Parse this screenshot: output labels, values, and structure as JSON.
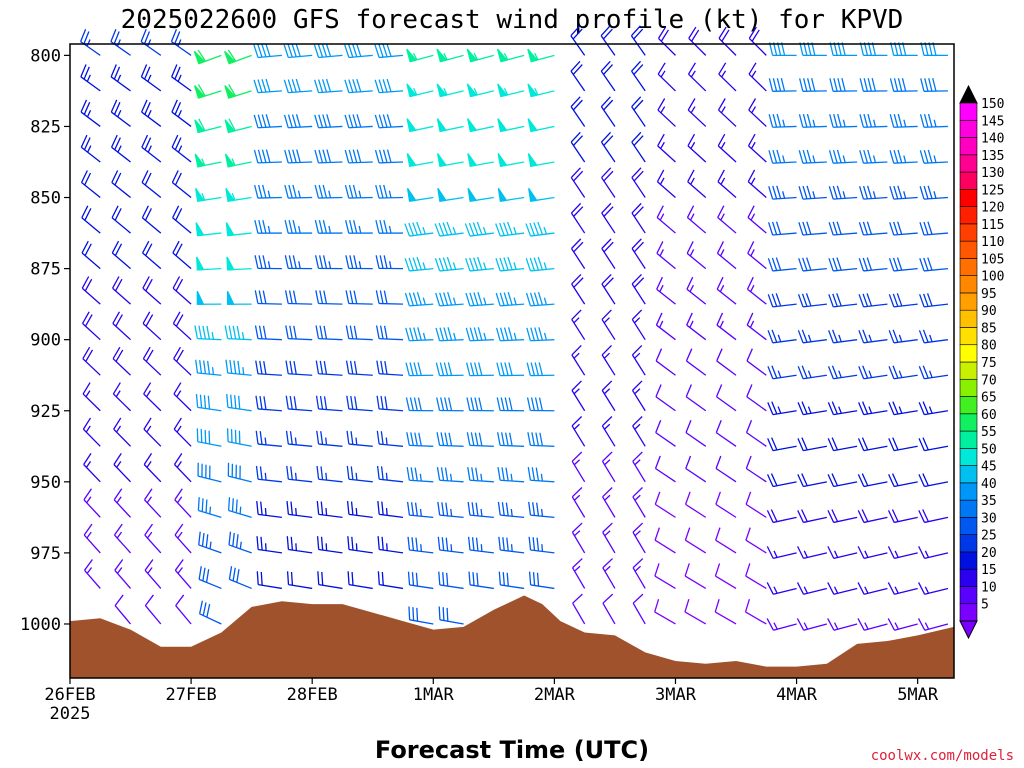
{
  "chart_data": {
    "type": "wind-barb-profile",
    "title": "2025022600 GFS forecast wind profile (kt) for KPVD",
    "xlabel": "Forecast Time (UTC)",
    "ylabel": "",
    "credit": "coolwx.com/models",
    "x_ticks": [
      {
        "label": "26FEB",
        "sub": "2025",
        "day": 0
      },
      {
        "label": "27FEB",
        "sub": "",
        "day": 1
      },
      {
        "label": "28FEB",
        "sub": "",
        "day": 2
      },
      {
        "label": "1MAR",
        "sub": "",
        "day": 3
      },
      {
        "label": "2MAR",
        "sub": "",
        "day": 4
      },
      {
        "label": "3MAR",
        "sub": "",
        "day": 5
      },
      {
        "label": "4MAR",
        "sub": "",
        "day": 6
      },
      {
        "label": "5MAR",
        "sub": "",
        "day": 7
      }
    ],
    "xlim_days": [
      0,
      7.3
    ],
    "y_ticks": [
      800,
      825,
      850,
      875,
      900,
      925,
      950,
      975,
      1000
    ],
    "ylim_hpa": [
      796,
      1019
    ],
    "pressure_levels_hpa": [
      800,
      812.5,
      825,
      837.5,
      850,
      862.5,
      875,
      887.5,
      900,
      912.5,
      925,
      937.5,
      950,
      962.5,
      975,
      987.5,
      1000
    ],
    "colorbar": {
      "levels": [
        5,
        10,
        15,
        20,
        25,
        30,
        35,
        40,
        45,
        50,
        55,
        60,
        65,
        70,
        75,
        80,
        85,
        90,
        95,
        100,
        105,
        110,
        115,
        120,
        125,
        130,
        135,
        140,
        145,
        150
      ],
      "colors": [
        "#7a00ff",
        "#5a00ff",
        "#2a00ee",
        "#0010e0",
        "#0038e8",
        "#0058f0",
        "#0078f4",
        "#0098f8",
        "#00c0f0",
        "#00e8d8",
        "#00f0a0",
        "#10f060",
        "#40f020",
        "#88f000",
        "#c8f000",
        "#ffff00",
        "#ffe000",
        "#ffc000",
        "#ffa000",
        "#ff8800",
        "#ff7000",
        "#ff5800",
        "#ff4000",
        "#ff2000",
        "#ff0000",
        "#ff0060",
        "#ff0090",
        "#ff00c0",
        "#ff00e0",
        "#ff00ff"
      ],
      "low_color": "#7a00ff",
      "high_color": "#000000"
    },
    "surface_pressure": {
      "color": "#a0522d",
      "days": [
        0,
        0.25,
        0.5,
        0.75,
        1.0,
        1.25,
        1.5,
        1.75,
        2.0,
        2.25,
        2.5,
        2.75,
        3.0,
        3.25,
        3.5,
        3.75,
        3.9,
        4.05,
        4.25,
        4.5,
        4.75,
        5.0,
        5.25,
        5.5,
        5.75,
        6.0,
        6.25,
        6.5,
        6.75,
        7.0,
        7.3
      ],
      "hpa": [
        999,
        998,
        1002,
        1008,
        1008,
        1003,
        994,
        992,
        993,
        993,
        996,
        999,
        1002,
        1001,
        995,
        990,
        993,
        999,
        1003,
        1004,
        1010,
        1013,
        1014,
        1013,
        1015,
        1015,
        1014,
        1007,
        1006,
        1004,
        1001
      ]
    },
    "wind_barbs": {
      "time_step_hours": 6,
      "segments": [
        {
          "day_start": 0.0,
          "day_end": 1.05,
          "speed_top": 25,
          "speed_bottom": 12,
          "dir_top": 305,
          "dir_bottom": 320
        },
        {
          "day_start": 1.05,
          "day_end": 1.55,
          "speed_top": 62,
          "speed_bottom": 30,
          "dir_top": 250,
          "dir_bottom": 295
        },
        {
          "day_start": 1.55,
          "day_end": 3.0,
          "speed_top": 42,
          "speed_bottom": 20,
          "dir_top": 265,
          "dir_bottom": 280
        },
        {
          "day_start": 3.0,
          "day_end": 4.1,
          "speed_top": 55,
          "speed_bottom": 30,
          "dir_top": 255,
          "dir_bottom": 280
        },
        {
          "day_start": 4.1,
          "day_end": 5.0,
          "speed_top": 22,
          "speed_bottom": 12,
          "dir_top": 325,
          "dir_bottom": 330
        },
        {
          "day_start": 5.0,
          "day_end": 6.0,
          "speed_top": 18,
          "speed_bottom": 8,
          "dir_top": 315,
          "dir_bottom": 300
        },
        {
          "day_start": 6.0,
          "day_end": 7.3,
          "speed_top": 40,
          "speed_bottom": 14,
          "dir_top": 270,
          "dir_bottom": 255
        }
      ]
    }
  }
}
